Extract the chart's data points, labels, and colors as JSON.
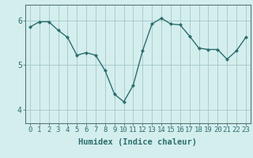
{
  "x": [
    0,
    1,
    2,
    3,
    4,
    5,
    6,
    7,
    8,
    9,
    10,
    11,
    12,
    13,
    14,
    15,
    16,
    17,
    18,
    19,
    20,
    21,
    22,
    23
  ],
  "y": [
    5.85,
    5.97,
    5.97,
    5.78,
    5.62,
    5.22,
    5.28,
    5.22,
    4.88,
    4.35,
    4.18,
    4.55,
    5.32,
    5.92,
    6.05,
    5.92,
    5.9,
    5.65,
    5.38,
    5.35,
    5.35,
    5.13,
    5.32,
    5.62
  ],
  "line_color": "#2d6e6e",
  "bg_color": "#d4eeee",
  "grid_color": "#aacccc",
  "axis_color": "#557777",
  "xlabel": "Humidex (Indice chaleur)",
  "xlim": [
    -0.5,
    23.5
  ],
  "ylim": [
    3.7,
    6.35
  ],
  "yticks": [
    4,
    5,
    6
  ],
  "xticks": [
    0,
    1,
    2,
    3,
    4,
    5,
    6,
    7,
    8,
    9,
    10,
    11,
    12,
    13,
    14,
    15,
    16,
    17,
    18,
    19,
    20,
    21,
    22,
    23
  ],
  "marker": "D",
  "marker_size": 2.0,
  "line_width": 1.0,
  "tick_fontsize": 6.5,
  "xlabel_fontsize": 7.5
}
